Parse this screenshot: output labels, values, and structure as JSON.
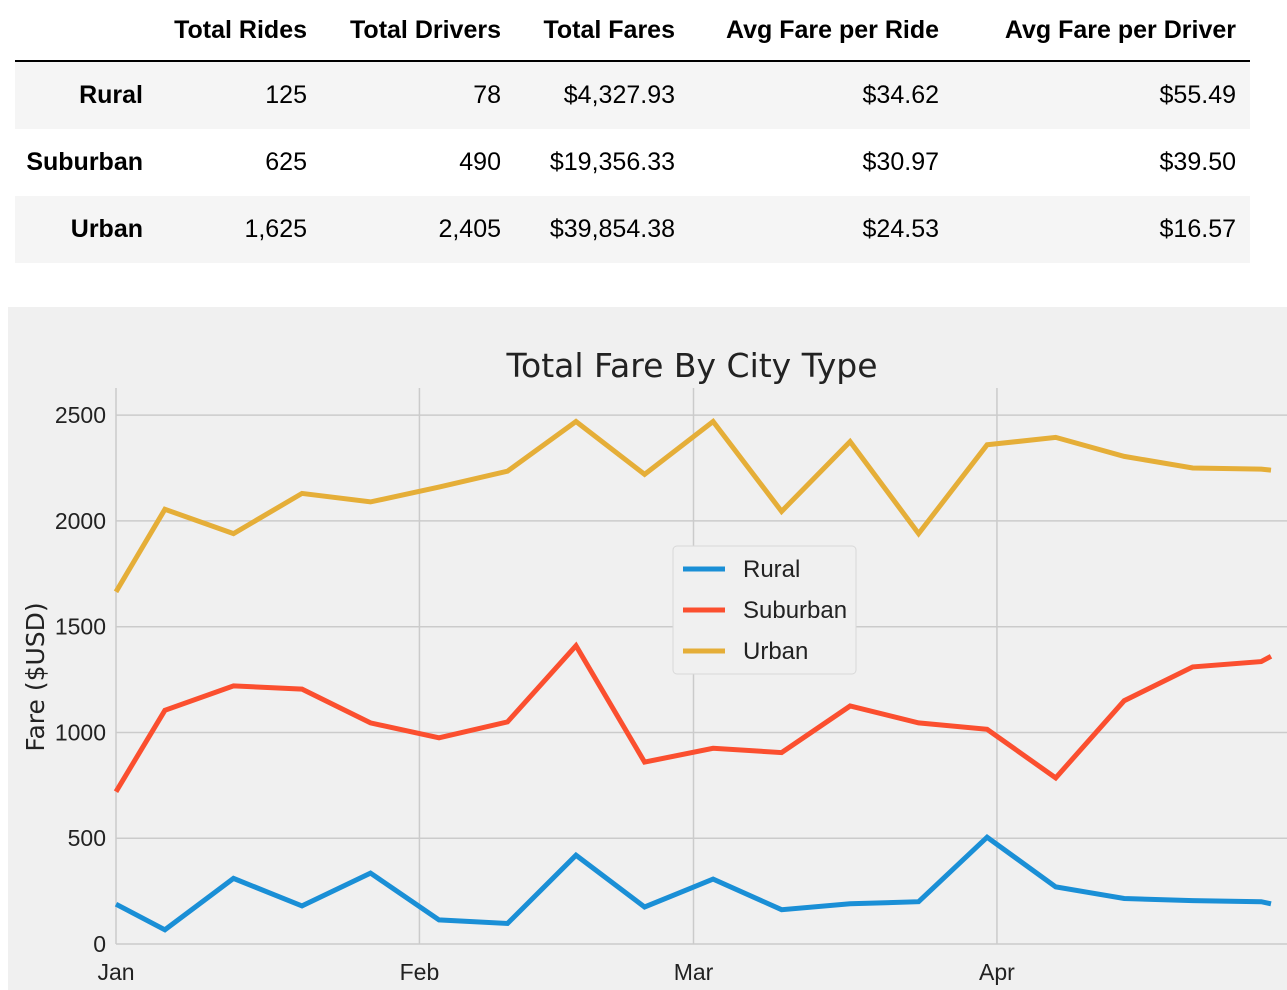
{
  "table": {
    "columns": [
      "",
      "Total Rides",
      "Total Drivers",
      "Total Fares",
      "Avg Fare per Ride",
      "Avg Fare per Driver"
    ],
    "rows": [
      [
        "Rural",
        "125",
        "78",
        "$4,327.93",
        "$34.62",
        "$55.49"
      ],
      [
        "Suburban",
        "625",
        "490",
        "$19,356.33",
        "$30.97",
        "$39.50"
      ],
      [
        "Urban",
        "1,625",
        "2,405",
        "$39,854.38",
        "$24.53",
        "$16.57"
      ]
    ]
  },
  "chart_data": {
    "type": "line",
    "title": "Total Fare By City Type",
    "xlabel": "",
    "ylabel": "Fare ($USD)",
    "x": [
      "2019-01-01",
      "2019-01-06",
      "2019-01-13",
      "2019-01-20",
      "2019-01-27",
      "2019-02-03",
      "2019-02-10",
      "2019-02-17",
      "2019-02-24",
      "2019-03-03",
      "2019-03-10",
      "2019-03-17",
      "2019-03-24",
      "2019-03-31",
      "2019-04-07",
      "2019-04-14",
      "2019-04-21",
      "2019-04-28",
      "2019-04-29"
    ],
    "x_ticks": [
      {
        "date": "2019-01-01",
        "label": "Jan"
      },
      {
        "date": "2019-02-01",
        "label": "Feb"
      },
      {
        "date": "2019-03-01",
        "label": "Mar"
      },
      {
        "date": "2019-04-01",
        "label": "Apr"
      }
    ],
    "xlim": [
      "2019-01-01",
      "2019-04-29"
    ],
    "ylim": [
      0,
      2600
    ],
    "y_ticks": [
      0,
      500,
      1000,
      1500,
      2000,
      2500
    ],
    "grid": true,
    "legend_position": "center",
    "series": [
      {
        "name": "Rural",
        "color": "#1a8fd6",
        "values": [
          188,
          67,
          310,
          180,
          335,
          114,
          97,
          420,
          175,
          307,
          162,
          190,
          200,
          505,
          270,
          215,
          205,
          200,
          190
        ]
      },
      {
        "name": "Suburban",
        "color": "#fb4f2f",
        "values": [
          720,
          1105,
          1220,
          1205,
          1045,
          975,
          1050,
          1410,
          860,
          925,
          905,
          1125,
          1045,
          1015,
          785,
          1150,
          1310,
          1335,
          1360
        ]
      },
      {
        "name": "Urban",
        "color": "#e5ae38",
        "values": [
          1665,
          2055,
          1940,
          2130,
          2090,
          2160,
          2235,
          2470,
          2220,
          2470,
          2045,
          2375,
          1940,
          2360,
          2395,
          2305,
          2250,
          2245,
          2240
        ]
      }
    ]
  }
}
